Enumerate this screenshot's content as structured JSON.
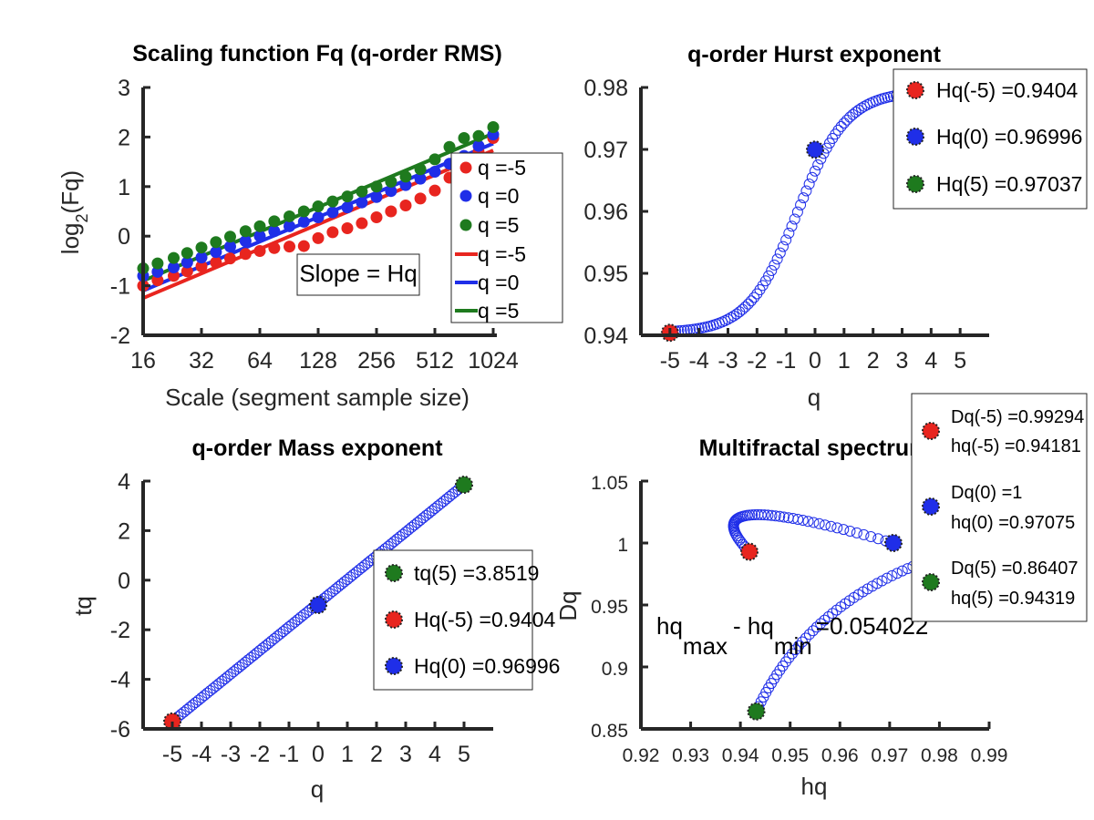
{
  "chart_data": [
    {
      "type": "scatter",
      "title": "Scaling function Fq (q-order RMS)",
      "xlabel": "Scale (segment sample size)",
      "ylabel_main": "log",
      "ylabel_sub": "2",
      "ylabel_tail": "(Fq)",
      "x_scale": "log2",
      "xlim": [
        16,
        1024
      ],
      "ylim": [
        -2,
        3
      ],
      "x_ticks": [
        16,
        32,
        64,
        128,
        256,
        512,
        1024
      ],
      "x_tick_labels": [
        "16",
        "32",
        "64",
        "128",
        "256",
        "512",
        "1024"
      ],
      "y_ticks": [
        -2,
        -1,
        0,
        1,
        2,
        3
      ],
      "y_tick_labels": [
        "-2",
        "-1",
        "0",
        "1",
        "2",
        "3"
      ],
      "scales": [
        16,
        19,
        23,
        27,
        32,
        38,
        45,
        54,
        64,
        76,
        91,
        108,
        128,
        152,
        181,
        215,
        256,
        304,
        362,
        431,
        512,
        609,
        724,
        861,
        1024
      ],
      "series": [
        {
          "name": "q =-5",
          "color": "#e8251f",
          "values": [
            -1.0,
            -0.89,
            -0.8,
            -0.71,
            -0.61,
            -0.53,
            -0.45,
            -0.36,
            -0.3,
            -0.24,
            -0.21,
            -0.2,
            -0.04,
            0.08,
            0.16,
            0.26,
            0.38,
            0.5,
            0.62,
            0.76,
            0.92,
            1.18,
            1.45,
            1.7,
            1.98
          ]
        },
        {
          "name": "q =0",
          "color": "#1f2ee8",
          "values": [
            -0.8,
            -0.72,
            -0.63,
            -0.53,
            -0.43,
            -0.32,
            -0.21,
            -0.1,
            0.0,
            0.1,
            0.2,
            0.29,
            0.38,
            0.48,
            0.58,
            0.68,
            0.79,
            0.91,
            1.03,
            1.16,
            1.3,
            1.46,
            1.62,
            1.82,
            2.05
          ]
        },
        {
          "name": "q =5",
          "color": "#1e7a1e",
          "values": [
            -0.65,
            -0.55,
            -0.44,
            -0.34,
            -0.23,
            -0.12,
            -0.01,
            0.1,
            0.2,
            0.3,
            0.4,
            0.5,
            0.6,
            0.7,
            0.8,
            0.9,
            1.0,
            1.1,
            1.2,
            1.35,
            1.55,
            1.8,
            1.98,
            2.02,
            2.2
          ]
        }
      ],
      "fits": [
        {
          "name": "q =-5",
          "color": "#e8251f",
          "y_start": -1.25,
          "y_end": 1.73
        },
        {
          "name": "q =0",
          "color": "#1f2ee8",
          "y_start": -1.1,
          "y_end": 1.87
        },
        {
          "name": "q =5",
          "color": "#1e7a1e",
          "y_start": -0.9,
          "y_end": 2.07
        }
      ],
      "annotation": "Slope = Hq",
      "legend_position": "right"
    },
    {
      "type": "scatter",
      "title": "q-order Hurst exponent",
      "xlabel": "q",
      "xlim": [
        -6,
        6
      ],
      "ylim": [
        0.94,
        0.98
      ],
      "x_ticks": [
        -5,
        -4,
        -3,
        -2,
        -1,
        0,
        1,
        2,
        3,
        4,
        5
      ],
      "x_tick_labels": [
        "-5",
        "-4",
        "-3",
        "-2",
        "-1",
        "0",
        "1",
        "2",
        "3",
        "4",
        "5"
      ],
      "y_ticks": [
        0.94,
        0.95,
        0.96,
        0.97,
        0.98
      ],
      "y_tick_labels": [
        "0.94",
        "0.95",
        "0.96",
        "0.97",
        "0.98"
      ],
      "curve": {
        "color": "#1f2ee8",
        "q_start": -5,
        "q_end": 5,
        "count": 101,
        "h_min": 0.9404,
        "h_max": 0.9794,
        "h_at_zero": 0.96996
      },
      "highlights": [
        {
          "label": "Hq(-5) =0.9404",
          "color": "#e8251f",
          "x": -5,
          "y": 0.9404
        },
        {
          "label": "Hq(0) =0.96996",
          "color": "#1f2ee8",
          "x": 0,
          "y": 0.96996
        },
        {
          "label": "Hq(5) =0.97037",
          "color": "#1e7a1e",
          "x": 5,
          "y": 0.97037
        }
      ],
      "legend_position": "top-right"
    },
    {
      "type": "scatter",
      "title": "q-order Mass exponent",
      "xlabel": "q",
      "ylabel": "tq",
      "xlim": [
        -6,
        6
      ],
      "ylim": [
        -6,
        4
      ],
      "x_ticks": [
        -5,
        -4,
        -3,
        -2,
        -1,
        0,
        1,
        2,
        3,
        4,
        5
      ],
      "x_tick_labels": [
        "-5",
        "-4",
        "-3",
        "-2",
        "-1",
        "0",
        "1",
        "2",
        "3",
        "4",
        "5"
      ],
      "y_ticks": [
        -6,
        -4,
        -2,
        0,
        2,
        4
      ],
      "y_tick_labels": [
        "-6",
        "-4",
        "-2",
        "0",
        "2",
        "4"
      ],
      "curve": {
        "color": "#1f2ee8",
        "q_start": -5,
        "q_end": 5,
        "count": 101,
        "tq_start": -5.7,
        "tq_end": 3.8519
      },
      "highlights": [
        {
          "label": "tq(5) =3.8519",
          "color": "#1e7a1e",
          "x": 5,
          "y": 3.8519
        },
        {
          "label": "Hq(-5) =0.9404",
          "color": "#e8251f",
          "x": -5,
          "y": -5.702
        },
        {
          "label": "Hq(0) =0.96996",
          "color": "#1f2ee8",
          "x": 0,
          "y": -1.0
        }
      ],
      "legend_position": "bottom-right"
    },
    {
      "type": "scatter",
      "title": "Multifractal spectrum",
      "xlabel": "hq",
      "ylabel": "Dq",
      "xlim": [
        0.92,
        0.99
      ],
      "ylim": [
        0.85,
        1.05
      ],
      "x_ticks": [
        0.92,
        0.93,
        0.94,
        0.95,
        0.96,
        0.97,
        0.98,
        0.99
      ],
      "x_tick_labels": [
        "0.92",
        "0.93",
        "0.94",
        "0.95",
        "0.96",
        "0.97",
        "0.98",
        "0.99"
      ],
      "y_ticks": [
        0.85,
        0.9,
        0.95,
        1.0,
        1.05
      ],
      "y_tick_labels": [
        "0.85",
        "0.9",
        "0.95",
        "1",
        "1.05"
      ],
      "branches": [
        {
          "color": "#1f2ee8",
          "from": [
            0.9418,
            0.9929
          ],
          "via": [
            0.9285,
            1.049
          ],
          "to": [
            0.97075,
            1.0
          ],
          "count": 55
        },
        {
          "color": "#1f2ee8",
          "from": [
            0.9432,
            0.8641
          ],
          "via": [
            0.9555,
            0.97
          ],
          "to": [
            0.99,
            1.0
          ],
          "count": 55
        }
      ],
      "highlights": [
        {
          "label1": "Dq(-5) =0.99294",
          "label2": "hq(-5) =0.94181",
          "color": "#e8251f",
          "x": 0.94181,
          "y": 0.99294
        },
        {
          "label1": "Dq(0) =1",
          "label2": "hq(0) =0.97075",
          "color": "#1f2ee8",
          "x": 0.97075,
          "y": 1.0
        },
        {
          "label1": "Dq(5) =0.86407",
          "label2": "hq(5) =0.94319",
          "color": "#1e7a1e",
          "x": 0.94319,
          "y": 0.86407
        }
      ],
      "annotation": {
        "base1": "hq",
        "sub1": "max",
        "mid": "- hq",
        "sub2": "min",
        "tail": "=0.054022"
      },
      "legend_position": "top-right"
    }
  ]
}
